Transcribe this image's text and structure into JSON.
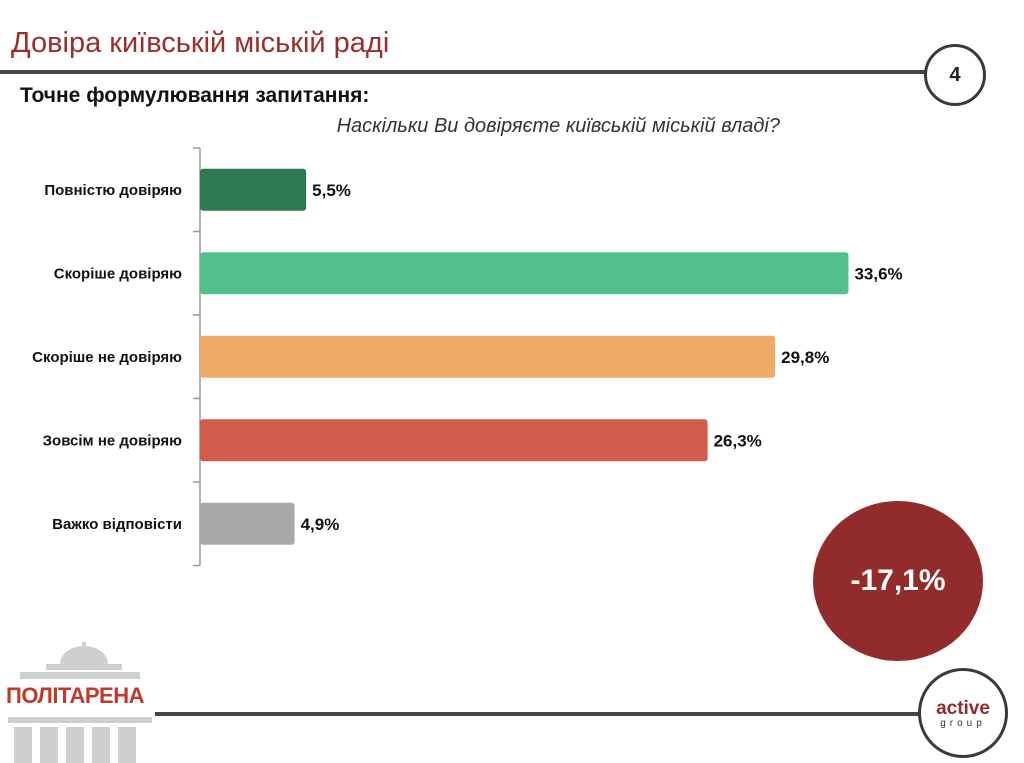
{
  "header": {
    "title": "Довіра київській міській раді",
    "page_number": "4"
  },
  "subtitle": "Точне формулювання запитання:",
  "question": "Наскільки Ви довіряєте київській міській владі?",
  "chart_data": {
    "type": "bar",
    "orientation": "horizontal",
    "categories": [
      "Повністю довіряю",
      "Скоріше довіряю",
      "Скоріше не довіряю",
      "Зовсім не довіряю",
      "Важко відповісти"
    ],
    "values": [
      5.5,
      33.6,
      29.8,
      26.3,
      4.9
    ],
    "value_labels": [
      "5,5%",
      "33,6%",
      "29,8%",
      "26,3%",
      "4,9%"
    ],
    "colors": [
      "#2e7a50",
      "#52c08a",
      "#f0aa68",
      "#d35b4b",
      "#a8a8a8"
    ],
    "xlim": [
      0,
      36
    ],
    "unit": "%",
    "title": "Наскільки Ви довіряєте київській міській владі?",
    "xlabel": "",
    "ylabel": "",
    "grid": false,
    "legend": "none"
  },
  "change_badge": {
    "value": "-17,1%",
    "color": "#922b2b"
  },
  "logos": {
    "left_text": "ПОЛІТАРЕНА",
    "right_main": "active",
    "right_sub": "group"
  }
}
